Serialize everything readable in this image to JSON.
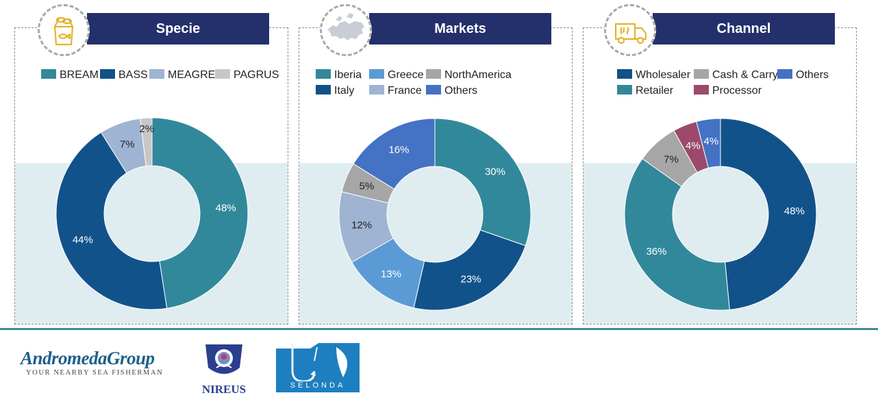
{
  "colors": {
    "title_bar": "#24306b",
    "panel_band": "#dfedf1",
    "divider": "#3f8a99",
    "icon_gold": "#e6b22e"
  },
  "icons": {
    "specie": "fish-basket-icon",
    "markets": "europe-map-icon",
    "channel": "delivery-truck-icon"
  },
  "charts": [
    {
      "title": "Specie",
      "legend_layout": [
        [
          "BREAM",
          "BASS",
          "MEAGRE",
          "PAGRUS"
        ]
      ],
      "chart_data": {
        "type": "pie",
        "title": "Specie",
        "series": [
          {
            "name": "BREAM",
            "value": 48,
            "label": "48%",
            "color": "#32889b"
          },
          {
            "name": "BASS",
            "value": 44,
            "label": "44%",
            "color": "#12528a"
          },
          {
            "name": "MEAGRE",
            "value": 7,
            "label": "7%",
            "color": "#9fb3d3"
          },
          {
            "name": "PAGRUS",
            "value": 2,
            "label": "2%",
            "color": "#c7c7c7"
          }
        ]
      }
    },
    {
      "title": "Markets",
      "legend_layout": [
        [
          "Iberia",
          "Greece",
          "NorthAmerica"
        ],
        [
          "Italy",
          "France",
          "Others"
        ]
      ],
      "chart_data": {
        "type": "pie",
        "title": "Markets",
        "series": [
          {
            "name": "Iberia",
            "value": 30,
            "label": "30%",
            "color": "#32889b"
          },
          {
            "name": "Italy",
            "value": 23,
            "label": "23%",
            "color": "#12528a"
          },
          {
            "name": "Greece",
            "value": 13,
            "label": "13%",
            "color": "#5b9bd5"
          },
          {
            "name": "France",
            "value": 12,
            "label": "12%",
            "color": "#9fb3d3"
          },
          {
            "name": "NorthAmerica",
            "value": 5,
            "label": "5%",
            "color": "#a6a6a6"
          },
          {
            "name": "Others",
            "value": 16,
            "label": "16%",
            "color": "#4472c4"
          }
        ]
      }
    },
    {
      "title": "Channel",
      "legend_layout": [
        [
          "Wholesaler",
          "Cash & Carry",
          "Others"
        ],
        [
          "Retailer",
          "Processor"
        ]
      ],
      "chart_data": {
        "type": "pie",
        "title": "Channel",
        "series": [
          {
            "name": "Wholesaler",
            "value": 48,
            "label": "48%",
            "color": "#12528a"
          },
          {
            "name": "Retailer",
            "value": 36,
            "label": "36%",
            "color": "#32889b"
          },
          {
            "name": "Cash & Carry",
            "value": 7,
            "label": "7%",
            "color": "#a6a6a6"
          },
          {
            "name": "Processor",
            "value": 4,
            "label": "4%",
            "color": "#9b4a6c"
          },
          {
            "name": "Others",
            "value": 4,
            "label": "4%",
            "color": "#4472c4"
          }
        ]
      }
    }
  ],
  "logos": {
    "andromeda": {
      "name": "AndromedaGroup",
      "tagline": "YOUR NEARBY SEA FISHERMAN"
    },
    "nireus": {
      "name": "NIREUS"
    },
    "selonda": {
      "name": "SELONDA"
    }
  }
}
